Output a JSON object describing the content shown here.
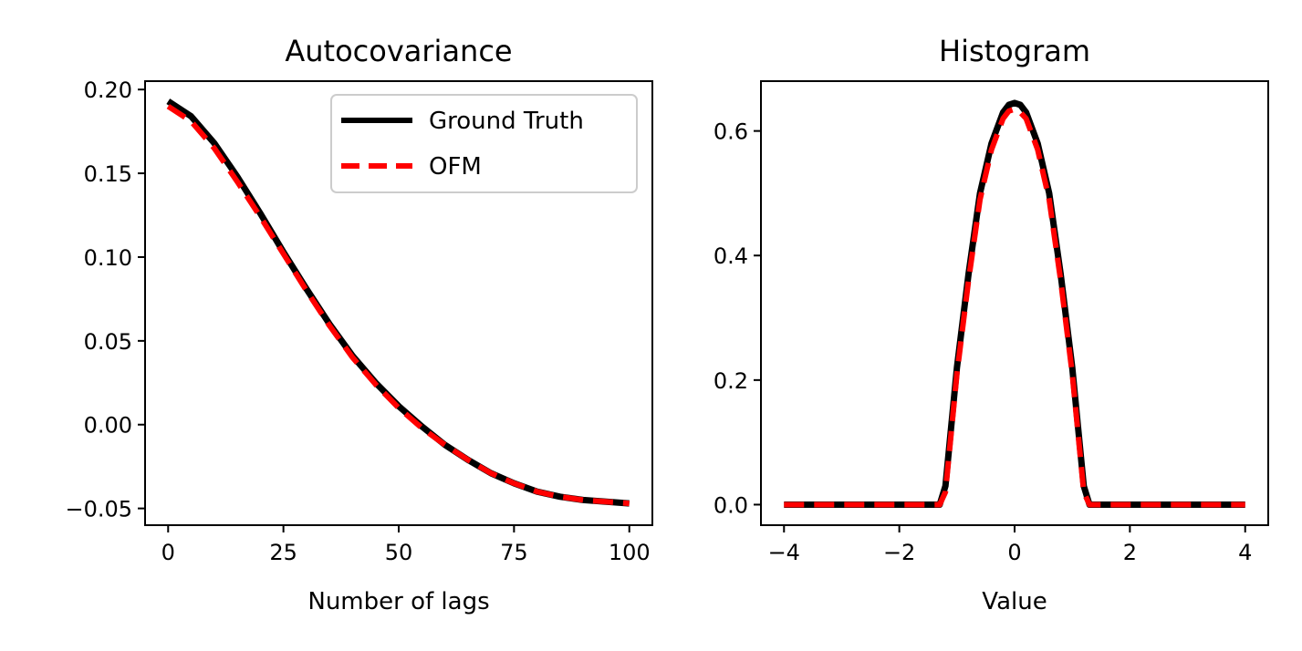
{
  "chart_data": [
    {
      "type": "line",
      "title": "Autocovariance",
      "xlabel": "Number of lags",
      "ylabel": "",
      "xlim": [
        -5,
        105
      ],
      "ylim": [
        -0.06,
        0.205
      ],
      "xticks": [
        0,
        25,
        50,
        75,
        100
      ],
      "yticks": [
        -0.05,
        0.0,
        0.05,
        0.1,
        0.15,
        0.2
      ],
      "xtick_labels": [
        "0",
        "25",
        "50",
        "75",
        "100"
      ],
      "ytick_labels": [
        "−0.05",
        "0.00",
        "0.05",
        "0.10",
        "0.15",
        "0.20"
      ],
      "legend": {
        "placement": "top-right",
        "entries": [
          "Ground Truth",
          "OFM"
        ]
      },
      "x": [
        0,
        5,
        10,
        15,
        20,
        25,
        30,
        35,
        40,
        45,
        50,
        55,
        60,
        65,
        70,
        75,
        80,
        85,
        90,
        95,
        100
      ],
      "series": [
        {
          "name": "Ground Truth",
          "color": "#000000",
          "style": "solid",
          "values": [
            0.193,
            0.184,
            0.168,
            0.148,
            0.126,
            0.103,
            0.081,
            0.06,
            0.041,
            0.025,
            0.011,
            -0.001,
            -0.012,
            -0.021,
            -0.029,
            -0.035,
            -0.04,
            -0.043,
            -0.045,
            -0.046,
            -0.047
          ]
        },
        {
          "name": "OFM",
          "color": "#ff0000",
          "style": "dashed",
          "values": [
            0.19,
            0.181,
            0.165,
            0.145,
            0.124,
            0.102,
            0.08,
            0.059,
            0.04,
            0.024,
            0.01,
            -0.002,
            -0.012,
            -0.021,
            -0.029,
            -0.035,
            -0.04,
            -0.043,
            -0.045,
            -0.046,
            -0.047
          ]
        }
      ]
    },
    {
      "type": "line",
      "title": "Histogram",
      "xlabel": "Value",
      "ylabel": "",
      "xlim": [
        -4.4,
        4.4
      ],
      "ylim": [
        -0.033,
        0.68
      ],
      "xticks": [
        -4,
        -2,
        0,
        2,
        4
      ],
      "yticks": [
        0.0,
        0.2,
        0.4,
        0.6
      ],
      "xtick_labels": [
        "−4",
        "−2",
        "0",
        "2",
        "4"
      ],
      "ytick_labels": [
        "0.0",
        "0.2",
        "0.4",
        "0.6"
      ],
      "x": [
        -4.0,
        -3.0,
        -2.0,
        -1.3,
        -1.2,
        -1.0,
        -0.8,
        -0.6,
        -0.4,
        -0.2,
        -0.1,
        0.0,
        0.1,
        0.2,
        0.4,
        0.6,
        0.8,
        1.0,
        1.2,
        1.3,
        2.0,
        3.0,
        4.0
      ],
      "series": [
        {
          "name": "Ground Truth",
          "color": "#000000",
          "style": "solid",
          "values": [
            0.0,
            0.0,
            0.0,
            0.0,
            0.03,
            0.22,
            0.37,
            0.5,
            0.58,
            0.63,
            0.642,
            0.645,
            0.642,
            0.63,
            0.58,
            0.5,
            0.37,
            0.22,
            0.03,
            0.0,
            0.0,
            0.0,
            0.0
          ]
        },
        {
          "name": "OFM",
          "color": "#ff0000",
          "style": "dashed",
          "values": [
            0.0,
            0.0,
            0.0,
            0.0,
            0.02,
            0.21,
            0.36,
            0.49,
            0.57,
            0.62,
            0.632,
            0.635,
            0.63,
            0.62,
            0.57,
            0.49,
            0.36,
            0.21,
            0.02,
            0.0,
            0.0,
            0.0,
            0.0
          ]
        }
      ]
    }
  ]
}
